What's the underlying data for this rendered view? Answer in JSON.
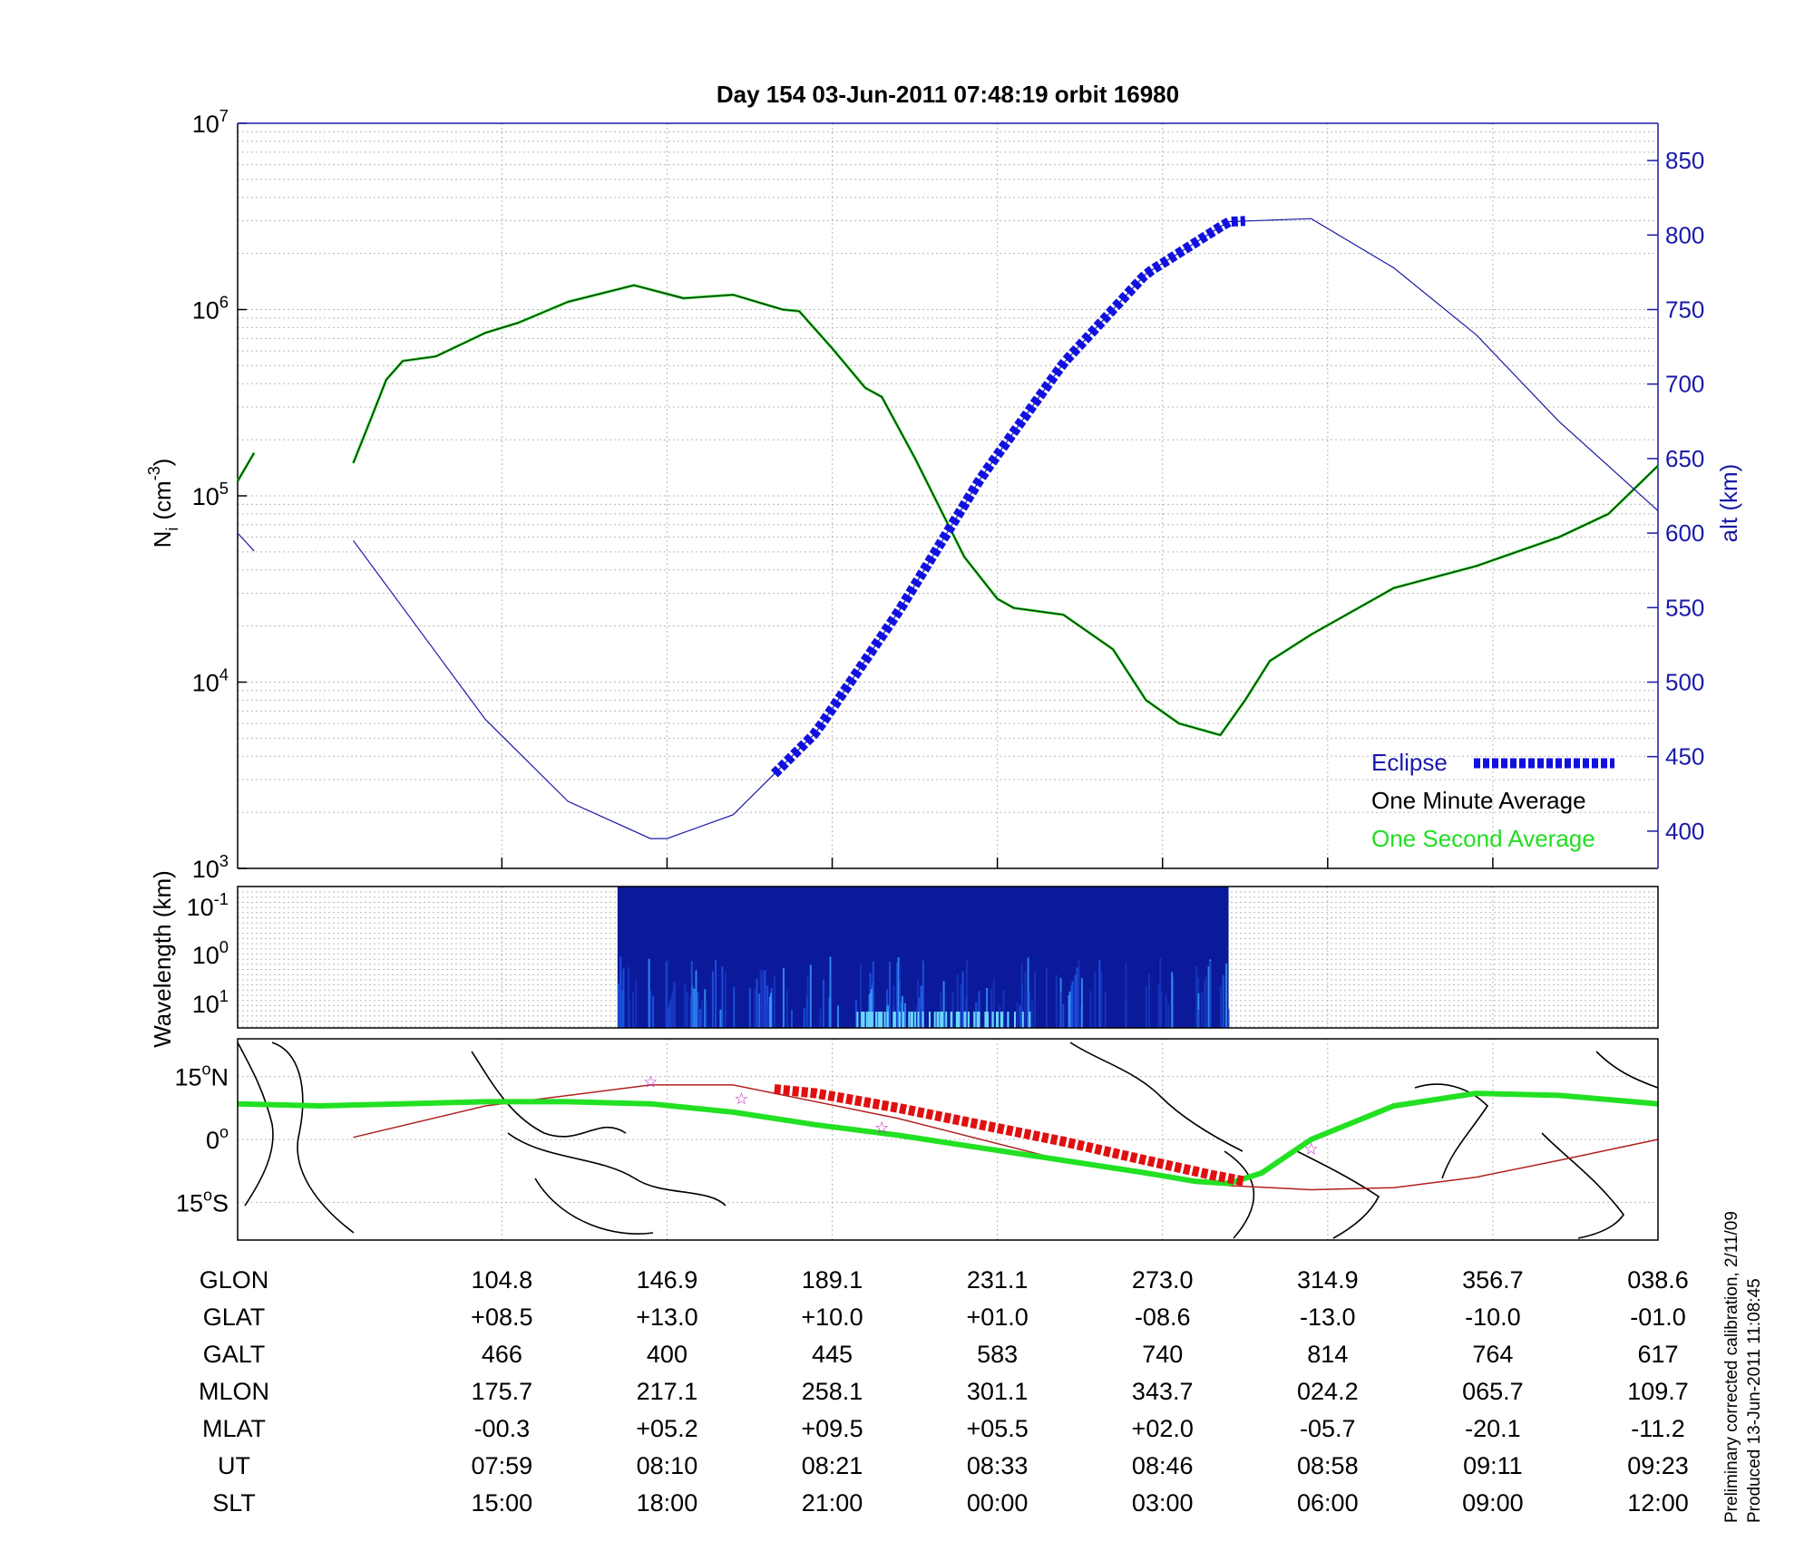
{
  "title": "Day 154  03-Jun-2011 07:48:19   orbit 16980",
  "side_note": [
    "Preliminary corrected calibration, 2/11/09",
    "Produced 13-Jun-2011 11:08:45"
  ],
  "colors": {
    "axis": "#000000",
    "grid": "#b8b8b8",
    "altitude": "#1a1aa8",
    "eclipse": "#1010e0",
    "density_minute": "#1a1a1a",
    "density_second": "#22dd22",
    "track_green": "#22e022",
    "track_red": "#e01010",
    "orbit_line": "#b02020",
    "stars": "#c020c0",
    "spectrogram": "#0a1a9a"
  },
  "chart_data": [
    {
      "type": "line",
      "panel": "density",
      "ylabel": "N_i (cm^-3)",
      "ylabel_main": "N",
      "ylabel_sub": "i",
      "ylabel_unit": "(cm",
      "ylabel_exp": "-3",
      "ylabel_close": ")",
      "y_scale": "log",
      "ylim": [
        1000,
        10000000
      ],
      "yticks": [
        {
          "base": "10",
          "exp": "3",
          "value": 1000
        },
        {
          "base": "10",
          "exp": "4",
          "value": 10000
        },
        {
          "base": "10",
          "exp": "5",
          "value": 100000
        },
        {
          "base": "10",
          "exp": "6",
          "value": 1000000
        },
        {
          "base": "10",
          "exp": "7",
          "value": 10000000
        }
      ],
      "y2label": "alt (km)",
      "y2lim": [
        375,
        875
      ],
      "y2ticks": [
        "400",
        "450",
        "500",
        "550",
        "600",
        "650",
        "700",
        "750",
        "800",
        "850"
      ],
      "xlim": [
        0,
        8.6
      ],
      "grid": true,
      "legend_position": "bottom-right",
      "legend": [
        "Eclipse",
        "One Minute Average",
        "One Second Average"
      ],
      "series": [
        {
          "name": "One Minute Average",
          "x": [
            0,
            0.1,
            0.7,
            0.8,
            0.9,
            1.0,
            1.2,
            1.5,
            1.7,
            2.0,
            2.4,
            2.7,
            3.0,
            3.3,
            3.4,
            3.6,
            3.8,
            3.9,
            4.1,
            4.4,
            4.6,
            4.7,
            5.0,
            5.3,
            5.5,
            5.7,
            5.95,
            6.1,
            6.25,
            6.5,
            7.0,
            7.5,
            8.0,
            8.3,
            8.6
          ],
          "y": [
            120000,
            170000,
            150000,
            250000,
            420000,
            530000,
            560000,
            750000,
            850000,
            1100000,
            1350000,
            1150000,
            1200000,
            1000000,
            980000,
            620000,
            380000,
            340000,
            160000,
            47000,
            28000,
            25000,
            23000,
            15000,
            8000,
            6000,
            5200,
            8000,
            13000,
            18000,
            32000,
            42000,
            60000,
            80000,
            145000
          ],
          "gaps_after_x": [
            0.1
          ]
        },
        {
          "name": "altitude",
          "axis": "right",
          "x": [
            0,
            0.1,
            0.7,
            1.0,
            1.5,
            2.0,
            2.5,
            2.6,
            3.0,
            3.5,
            4.0,
            4.5,
            5.0,
            5.5,
            6.0,
            6.5,
            7.0,
            7.5,
            8.0,
            8.6
          ],
          "y": [
            600,
            588,
            595,
            550,
            475,
            420,
            395,
            395,
            411,
            466,
            547,
            637,
            714,
            774,
            809,
            811,
            778,
            733,
            675,
            615
          ],
          "gaps_after_x": [
            0.1
          ]
        }
      ],
      "eclipse_x_range": [
        3.25,
        6.1
      ]
    },
    {
      "type": "heatmap",
      "panel": "spectrogram",
      "ylabel": "Wavelength (km)",
      "yticks": [
        {
          "base": "10",
          "exp": "-1"
        },
        {
          "base": "10",
          "exp": "0"
        },
        {
          "base": "10",
          "exp": "1"
        }
      ],
      "data_x_range": [
        2.3,
        6.0
      ]
    },
    {
      "type": "scatter",
      "panel": "ground_track",
      "yticks": [
        {
          "value": "15",
          "deg": "o",
          "hemi": "N"
        },
        {
          "value": "0",
          "deg": "o",
          "hemi": ""
        },
        {
          "value": "15",
          "deg": "o",
          "hemi": "S"
        }
      ],
      "ylim": [
        -24,
        24
      ],
      "green_track": {
        "x": [
          0,
          0.5,
          1.0,
          1.5,
          2.0,
          2.5,
          3.0,
          3.5,
          4.0,
          4.5,
          5.0,
          5.5,
          5.8,
          6.0,
          6.2,
          6.5,
          7.0,
          7.5,
          8.0,
          8.6
        ],
        "y": [
          8.5,
          8.0,
          8.5,
          9.0,
          9.0,
          8.5,
          6.5,
          3.5,
          1.0,
          -2.0,
          -5.0,
          -8.0,
          -10.0,
          -10.5,
          -8.0,
          0.0,
          8.0,
          11.0,
          10.5,
          8.5
        ]
      },
      "red_track": {
        "x": [
          3.25,
          3.5,
          4.0,
          4.5,
          5.0,
          5.5,
          5.9,
          6.1
        ],
        "y": [
          12.0,
          11.0,
          7.5,
          3.5,
          -0.5,
          -5.0,
          -8.5,
          -10.0
        ]
      },
      "orbit_line": {
        "x": [
          0.7,
          1.5,
          2.5,
          3.0,
          4.0,
          5.0,
          6.0,
          6.5,
          7.0,
          7.5,
          8.0,
          8.6
        ],
        "y": [
          0.5,
          8.0,
          13.0,
          13.0,
          5.0,
          -5.0,
          -11.0,
          -12.0,
          -11.5,
          -9.0,
          -5.0,
          0.0
        ]
      },
      "stars": [
        {
          "x": 2.5,
          "y": 14.0
        },
        {
          "x": 3.05,
          "y": 10.0
        },
        {
          "x": 3.9,
          "y": 3.0
        },
        {
          "x": 6.5,
          "y": -2.0
        }
      ]
    },
    {
      "type": "table",
      "panel": "orbit_table",
      "x_positions": [
        1.6,
        2.6,
        3.6,
        4.6,
        5.6,
        6.6,
        7.6,
        8.6
      ],
      "rows": [
        {
          "label": "GLON",
          "values": [
            "104.8",
            "146.9",
            "189.1",
            "231.1",
            "273.0",
            "314.9",
            "356.7",
            "038.6"
          ]
        },
        {
          "label": "GLAT",
          "values": [
            "+08.5",
            "+13.0",
            "+10.0",
            "+01.0",
            "-08.6",
            "-13.0",
            "-10.0",
            "-01.0"
          ]
        },
        {
          "label": "GALT",
          "values": [
            "466",
            "400",
            "445",
            "583",
            "740",
            "814",
            "764",
            "617"
          ]
        },
        {
          "label": "MLON",
          "values": [
            "175.7",
            "217.1",
            "258.1",
            "301.1",
            "343.7",
            "024.2",
            "065.7",
            "109.7"
          ]
        },
        {
          "label": "MLAT",
          "values": [
            "-00.3",
            "+05.2",
            "+09.5",
            "+05.5",
            "+02.0",
            "-05.7",
            "-20.1",
            "-11.2"
          ]
        },
        {
          "label": "UT",
          "values": [
            "07:59",
            "08:10",
            "08:21",
            "08:33",
            "08:46",
            "08:58",
            "09:11",
            "09:23"
          ]
        },
        {
          "label": "SLT",
          "values": [
            "15:00",
            "18:00",
            "21:00",
            "00:00",
            "03:00",
            "06:00",
            "09:00",
            "12:00"
          ]
        }
      ]
    }
  ]
}
